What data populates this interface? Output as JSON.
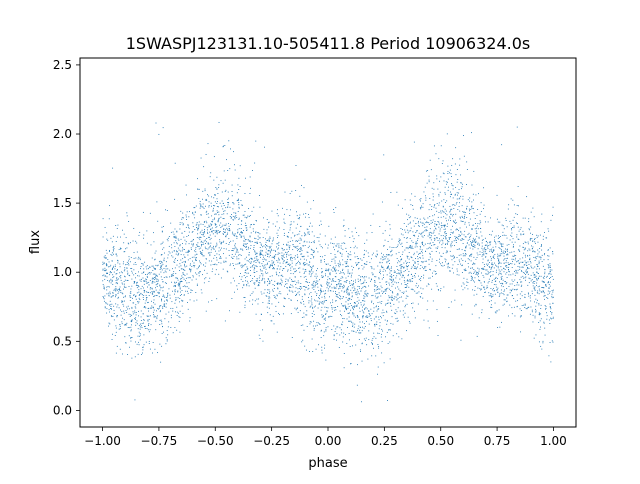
{
  "chart_data": {
    "type": "scatter",
    "title": "1SWASPJ123131.10-505411.8 Period 10906324.0s",
    "xlabel": "phase",
    "ylabel": "flux",
    "xlim": [
      -1.1,
      1.1
    ],
    "ylim": [
      -0.12,
      2.55
    ],
    "xticks": [
      -1.0,
      -0.75,
      -0.5,
      -0.25,
      0.0,
      0.25,
      0.5,
      0.75,
      1.0
    ],
    "xtick_labels": [
      "−1.00",
      "−0.75",
      "−0.50",
      "−0.25",
      "0.00",
      "0.25",
      "0.50",
      "0.75",
      "1.00"
    ],
    "yticks": [
      0.0,
      0.5,
      1.0,
      1.5,
      2.0,
      2.5
    ],
    "ytick_labels": [
      "0.0",
      "0.5",
      "1.0",
      "1.5",
      "2.0",
      "2.5"
    ],
    "grid": false,
    "legend": "none",
    "marker_color": "#1f77b4",
    "profile": {
      "phase": [
        0.0,
        0.05,
        0.1,
        0.15,
        0.2,
        0.25,
        0.3,
        0.35,
        0.4,
        0.45,
        0.5,
        0.55,
        0.6,
        0.65,
        0.7,
        0.75,
        0.8,
        0.85,
        0.9,
        0.95,
        1.0
      ],
      "flux": [
        1.0,
        0.92,
        0.85,
        0.82,
        0.8,
        0.88,
        0.95,
        1.05,
        1.15,
        1.25,
        1.32,
        1.35,
        1.28,
        1.15,
        1.08,
        1.02,
        1.05,
        1.1,
        1.02,
        0.92,
        0.88
      ],
      "spread": [
        0.18,
        0.2,
        0.22,
        0.22,
        0.22,
        0.2,
        0.2,
        0.2,
        0.2,
        0.22,
        0.22,
        0.22,
        0.22,
        0.2,
        0.18,
        0.18,
        0.2,
        0.2,
        0.2,
        0.22,
        0.22
      ]
    },
    "flux_range": [
      0.0,
      2.42
    ]
  }
}
